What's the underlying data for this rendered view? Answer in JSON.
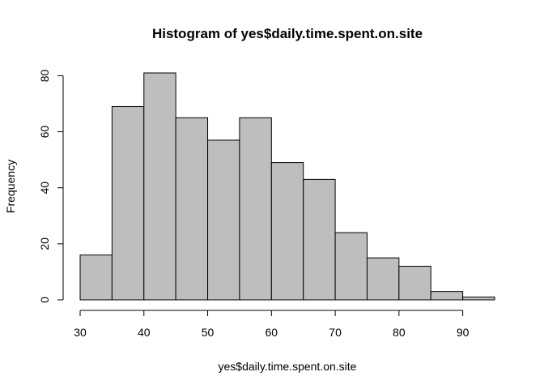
{
  "chart_data": {
    "type": "bar",
    "title": "Histogram of yes$daily.time.spent.on.site",
    "xlabel": "yes$daily.time.spent.on.site",
    "ylabel": "Frequency",
    "bins": [
      {
        "start": 30,
        "end": 35,
        "count": 16
      },
      {
        "start": 35,
        "end": 40,
        "count": 69
      },
      {
        "start": 40,
        "end": 45,
        "count": 81
      },
      {
        "start": 45,
        "end": 50,
        "count": 65
      },
      {
        "start": 50,
        "end": 55,
        "count": 57
      },
      {
        "start": 55,
        "end": 60,
        "count": 65
      },
      {
        "start": 60,
        "end": 65,
        "count": 49
      },
      {
        "start": 65,
        "end": 70,
        "count": 43
      },
      {
        "start": 70,
        "end": 75,
        "count": 24
      },
      {
        "start": 75,
        "end": 80,
        "count": 15
      },
      {
        "start": 80,
        "end": 85,
        "count": 12
      },
      {
        "start": 85,
        "end": 90,
        "count": 3
      },
      {
        "start": 90,
        "end": 95,
        "count": 1
      }
    ],
    "xlim": [
      30,
      95
    ],
    "ylim": [
      0,
      81
    ],
    "x_ticks": [
      "30",
      "40",
      "50",
      "60",
      "70",
      "80",
      "90"
    ],
    "y_ticks": [
      "0",
      "20",
      "40",
      "60",
      "80"
    ],
    "bar_color": "#bebebe",
    "edge_color": "#000000",
    "grid": false
  }
}
